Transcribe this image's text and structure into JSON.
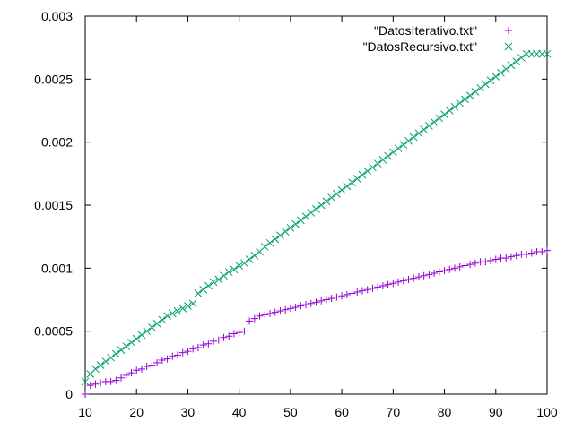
{
  "chart_data": {
    "type": "scatter",
    "title": "",
    "xlabel": "",
    "ylabel": "",
    "xlim": [
      10,
      100
    ],
    "ylim": [
      0,
      0.003
    ],
    "x_ticks": [
      "10",
      "20",
      "30",
      "40",
      "50",
      "60",
      "70",
      "80",
      "90",
      "100"
    ],
    "y_ticks": [
      "0",
      "0.0005",
      "0.001",
      "0.0015",
      "0.002",
      "0.0025",
      "0.003"
    ],
    "grid": false,
    "legend_position": "top-right",
    "series": [
      {
        "name": "\"DatosIterativo.txt\"",
        "marker": "plus",
        "color": "#9400d3",
        "x": [
          10,
          11,
          12,
          13,
          14,
          15,
          16,
          17,
          18,
          19,
          20,
          21,
          22,
          23,
          24,
          25,
          26,
          27,
          28,
          29,
          30,
          31,
          32,
          33,
          34,
          35,
          36,
          37,
          38,
          39,
          40,
          41,
          42,
          43,
          44,
          45,
          46,
          47,
          48,
          49,
          50,
          51,
          52,
          53,
          54,
          55,
          56,
          57,
          58,
          59,
          60,
          61,
          62,
          63,
          64,
          65,
          66,
          67,
          68,
          69,
          70,
          71,
          72,
          73,
          74,
          75,
          76,
          77,
          78,
          79,
          80,
          81,
          82,
          83,
          84,
          85,
          86,
          87,
          88,
          89,
          90,
          91,
          92,
          93,
          94,
          95,
          96,
          97,
          98,
          99,
          100
        ],
        "y": [
          0.0,
          7e-05,
          8e-05,
          9e-05,
          0.0001,
          0.0001,
          0.00011,
          0.00013,
          0.00015,
          0.00017,
          0.00019,
          0.0002,
          0.00022,
          0.00023,
          0.00025,
          0.00027,
          0.00028,
          0.0003,
          0.00031,
          0.00033,
          0.00034,
          0.00036,
          0.00037,
          0.00039,
          0.0004,
          0.00042,
          0.00043,
          0.00045,
          0.00046,
          0.00048,
          0.00049,
          0.0005,
          0.00058,
          0.0006,
          0.00062,
          0.00063,
          0.00064,
          0.00065,
          0.00066,
          0.00067,
          0.00068,
          0.00069,
          0.0007,
          0.00071,
          0.00072,
          0.00073,
          0.00074,
          0.00075,
          0.00076,
          0.00077,
          0.00078,
          0.00079,
          0.0008,
          0.00081,
          0.00082,
          0.00083,
          0.00084,
          0.00085,
          0.00086,
          0.00087,
          0.00088,
          0.00089,
          0.0009,
          0.00091,
          0.00092,
          0.00093,
          0.00094,
          0.00095,
          0.00096,
          0.00097,
          0.00098,
          0.00099,
          0.001,
          0.00101,
          0.00102,
          0.00103,
          0.00104,
          0.00105,
          0.00105,
          0.00106,
          0.00107,
          0.00108,
          0.00108,
          0.00109,
          0.0011,
          0.00111,
          0.00111,
          0.00112,
          0.00113,
          0.00113,
          0.00114
        ]
      },
      {
        "name": "\"DatosRecursivo.txt\"",
        "marker": "cross",
        "color": "#009e73",
        "x": [
          10,
          11,
          12,
          13,
          14,
          15,
          16,
          17,
          18,
          19,
          20,
          21,
          22,
          23,
          24,
          25,
          26,
          27,
          28,
          29,
          30,
          31,
          32,
          33,
          34,
          35,
          36,
          37,
          38,
          39,
          40,
          41,
          42,
          43,
          44,
          45,
          46,
          47,
          48,
          49,
          50,
          51,
          52,
          53,
          54,
          55,
          56,
          57,
          58,
          59,
          60,
          61,
          62,
          63,
          64,
          65,
          66,
          67,
          68,
          69,
          70,
          71,
          72,
          73,
          74,
          75,
          76,
          77,
          78,
          79,
          80,
          81,
          82,
          83,
          84,
          85,
          86,
          87,
          88,
          89,
          90,
          91,
          92,
          93,
          94,
          95,
          96,
          97,
          98,
          99,
          100
        ],
        "y": [
          0.0001,
          0.00016,
          0.0002,
          0.00023,
          0.00026,
          0.00029,
          0.00032,
          0.00035,
          0.00038,
          0.00041,
          0.00044,
          0.00047,
          0.0005,
          0.00053,
          0.00056,
          0.00059,
          0.00062,
          0.00064,
          0.00066,
          0.00068,
          0.0007,
          0.00072,
          0.0008,
          0.00083,
          0.00086,
          0.00089,
          0.00091,
          0.00094,
          0.00097,
          0.00099,
          0.00102,
          0.00104,
          0.00107,
          0.0011,
          0.00113,
          0.00117,
          0.0012,
          0.00123,
          0.00126,
          0.00129,
          0.00132,
          0.00135,
          0.00138,
          0.00141,
          0.00144,
          0.00147,
          0.0015,
          0.00153,
          0.00156,
          0.00159,
          0.00162,
          0.00165,
          0.00168,
          0.00171,
          0.00174,
          0.00177,
          0.0018,
          0.00183,
          0.00186,
          0.00189,
          0.00192,
          0.00195,
          0.00198,
          0.00201,
          0.00204,
          0.00207,
          0.0021,
          0.00213,
          0.00216,
          0.00219,
          0.00222,
          0.00225,
          0.00228,
          0.00231,
          0.00234,
          0.00237,
          0.0024,
          0.00243,
          0.00246,
          0.00249,
          0.00252,
          0.00255,
          0.00258,
          0.00261,
          0.00264,
          0.00267,
          0.0027,
          0.0027,
          0.0027,
          0.0027,
          0.0027
        ]
      }
    ]
  }
}
